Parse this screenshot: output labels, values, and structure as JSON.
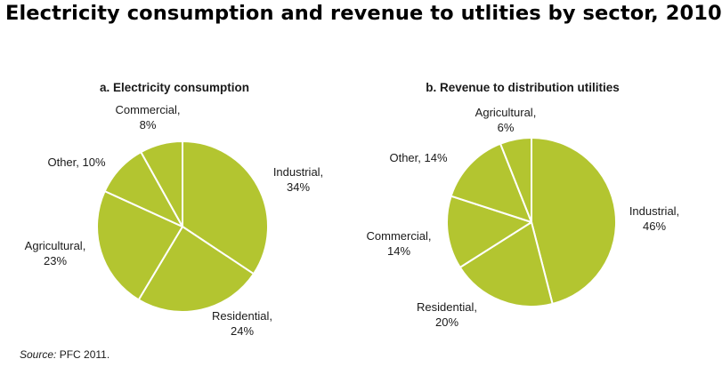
{
  "title": "Electricity consumption and revenue to utlities by sector, 2010",
  "source": {
    "label": "Source:",
    "text": "PFC 2011."
  },
  "colors": {
    "slice_fill": "#b3c530",
    "slice_stroke": "#ffffff"
  },
  "chart_data": [
    {
      "type": "pie",
      "title": "a. Electricity consumption",
      "categories": [
        "Industrial",
        "Residential",
        "Agricultural",
        "Other",
        "Commercial"
      ],
      "values": [
        34,
        24,
        23,
        10,
        8
      ],
      "labels": [
        [
          "Industrial,",
          "34%"
        ],
        [
          "Residential,",
          "24%"
        ],
        [
          "Agricultural,",
          "23%"
        ],
        [
          "Other, 10%"
        ],
        [
          "Commercial,",
          "8%"
        ]
      ]
    },
    {
      "type": "pie",
      "title": "b. Revenue to distribution utilities",
      "categories": [
        "Industrial",
        "Residential",
        "Commercial",
        "Other",
        "Agricultural"
      ],
      "values": [
        46,
        20,
        14,
        14,
        6
      ],
      "labels": [
        [
          "Industrial,",
          "46%"
        ],
        [
          "Residential,",
          "20%"
        ],
        [
          "Commercial,",
          "14%"
        ],
        [
          "Other, 14%"
        ],
        [
          "Agricultural,",
          "6%"
        ]
      ]
    }
  ]
}
